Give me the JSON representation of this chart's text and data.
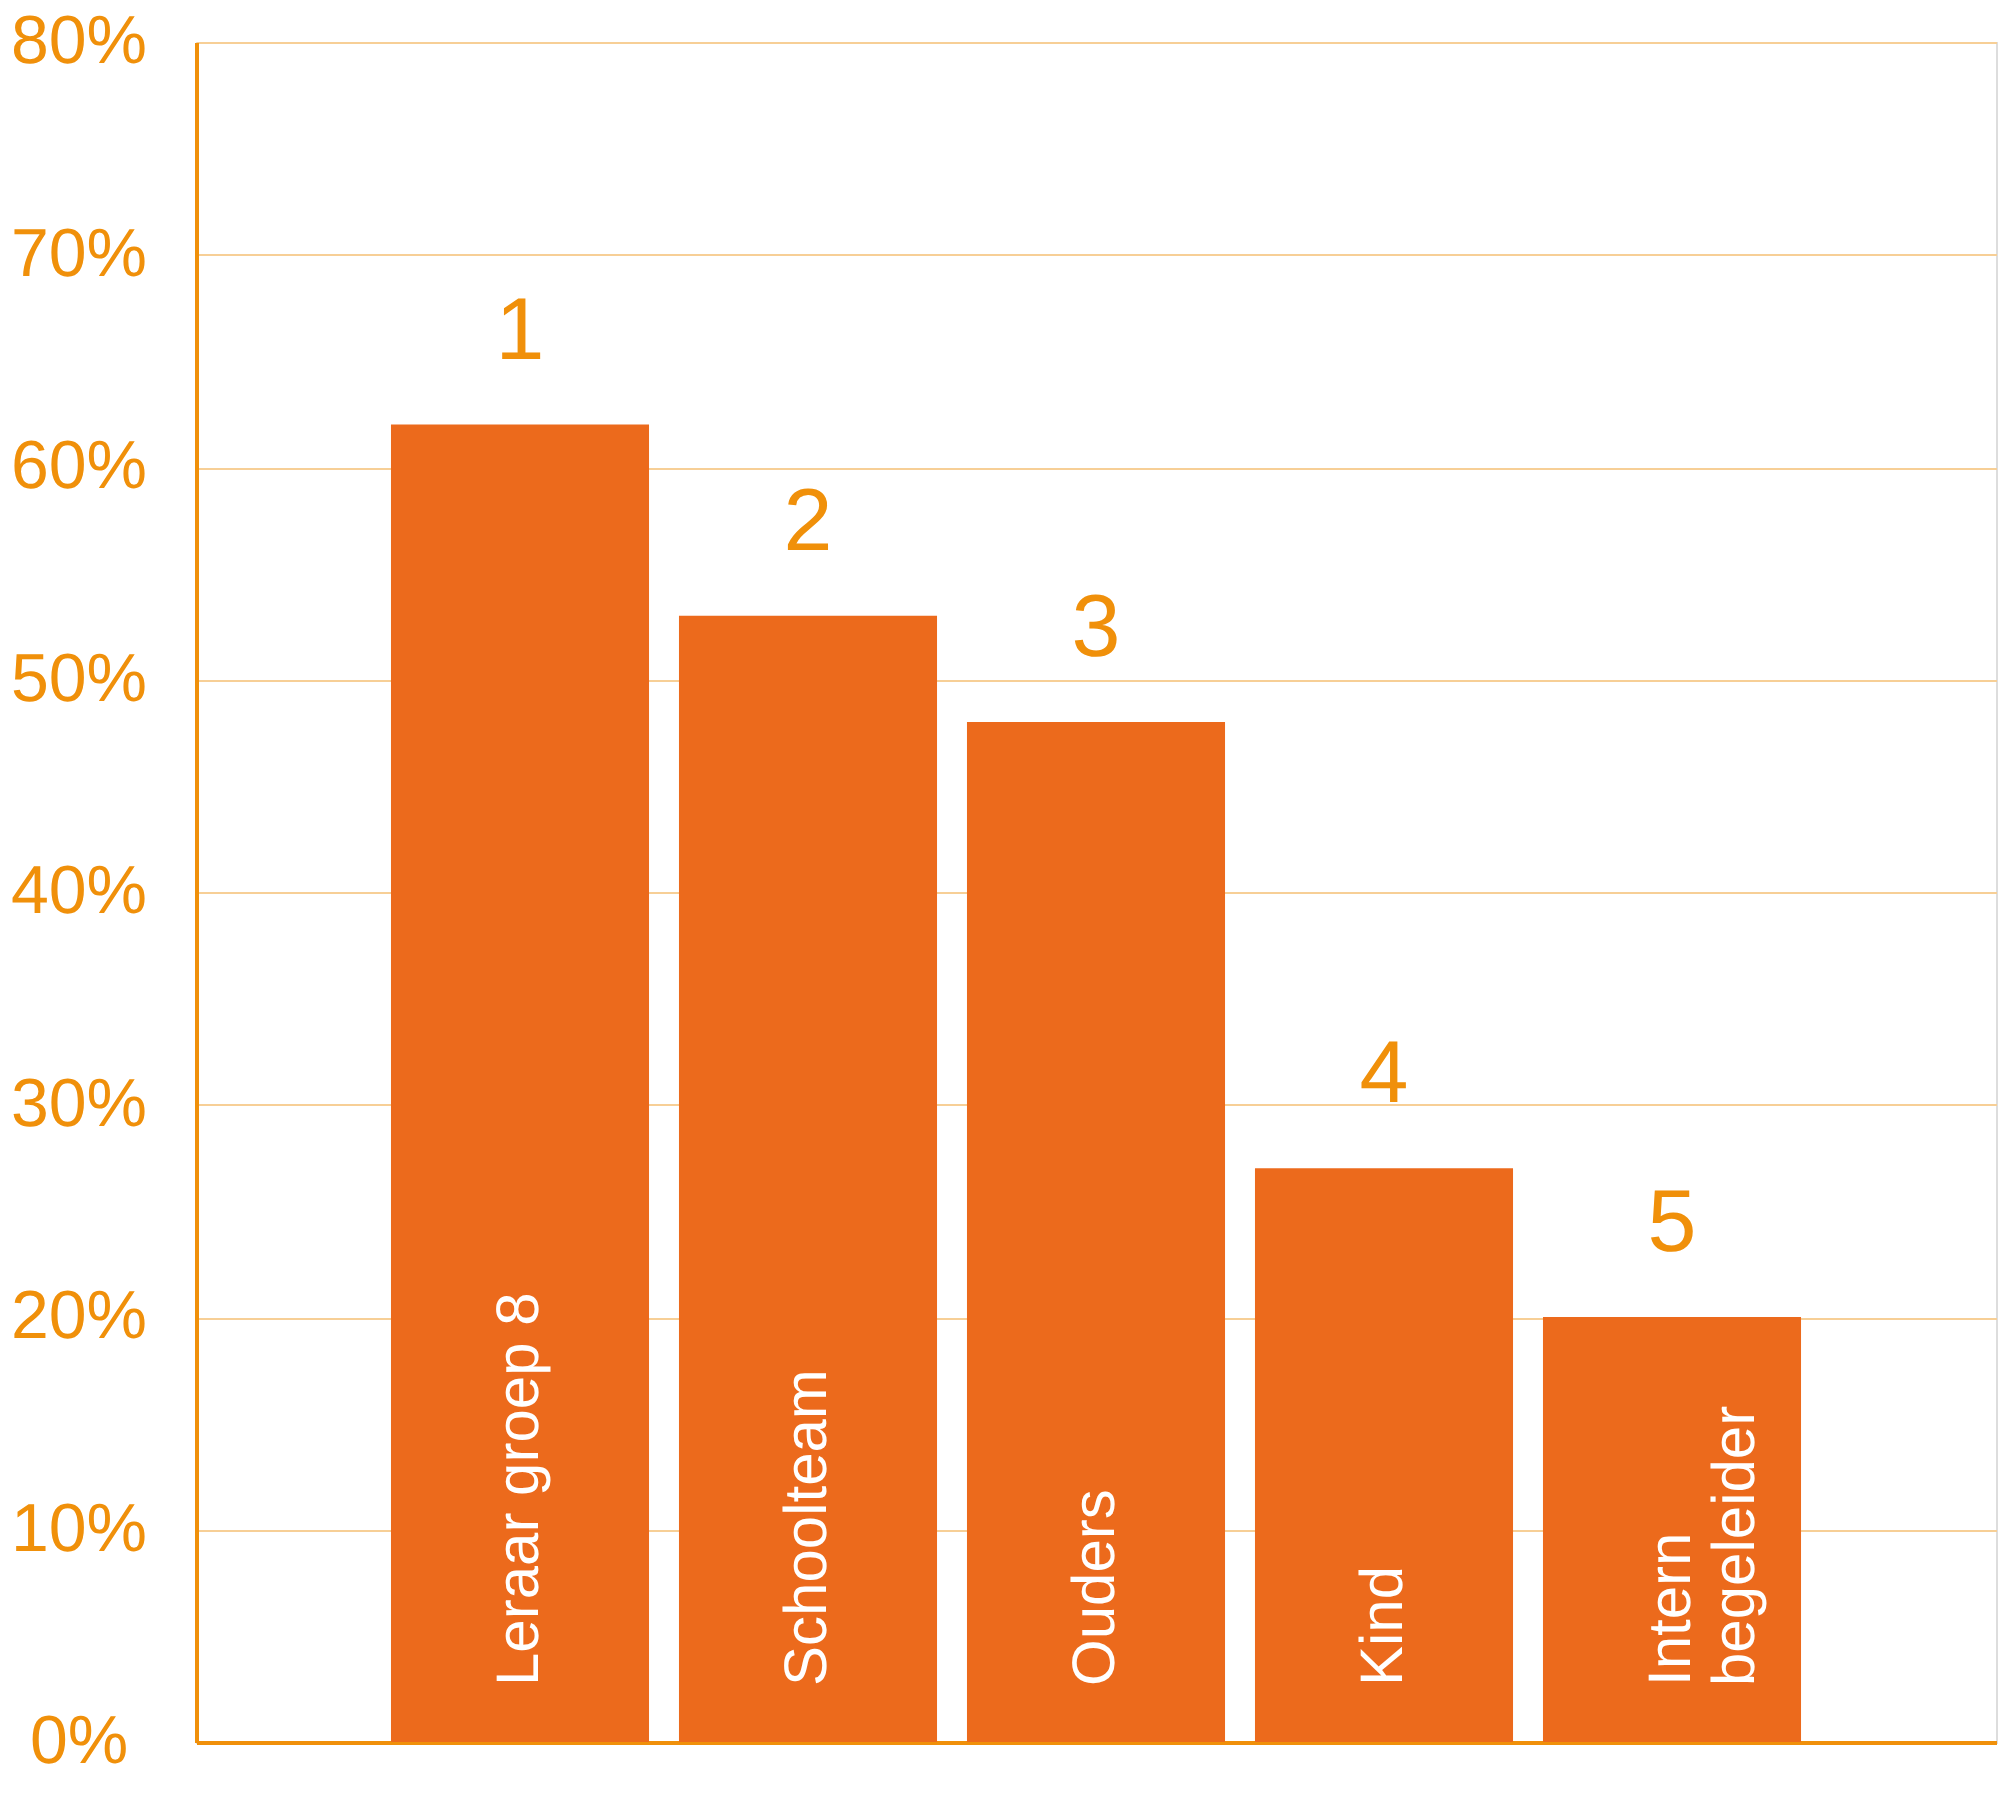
{
  "chart_data": {
    "type": "bar",
    "categories": [
      "Leraar groep 8",
      "Schoolteam",
      "Ouders",
      "Kind",
      "Intern begeleider"
    ],
    "values": [
      62,
      53,
      48,
      27,
      20
    ],
    "color": "#ec6a1c",
    "ylim": [
      0,
      80
    ],
    "yticks": [
      {
        "value": 0,
        "label": "0%"
      },
      {
        "value": 10,
        "label": "10%"
      },
      {
        "value": 20,
        "label": "20%"
      },
      {
        "value": 30,
        "label": "30%"
      },
      {
        "value": 40,
        "label": "40%"
      },
      {
        "value": 50,
        "label": "50%"
      },
      {
        "value": 60,
        "label": "60%"
      },
      {
        "value": 70,
        "label": "70%"
      },
      {
        "value": 80,
        "label": "80%"
      }
    ],
    "grid": "y",
    "annotations": [
      {
        "text": "1",
        "x": "Leraar groep 8",
        "y": 62
      },
      {
        "text": "2",
        "x": "Schoolteam",
        "y": 53
      },
      {
        "text": "3",
        "x": "Ouders",
        "y": 48
      },
      {
        "text": "4",
        "x": "Kind",
        "y": 27
      },
      {
        "text": "5",
        "x": "Intern begeleider",
        "y": 20
      }
    ]
  }
}
